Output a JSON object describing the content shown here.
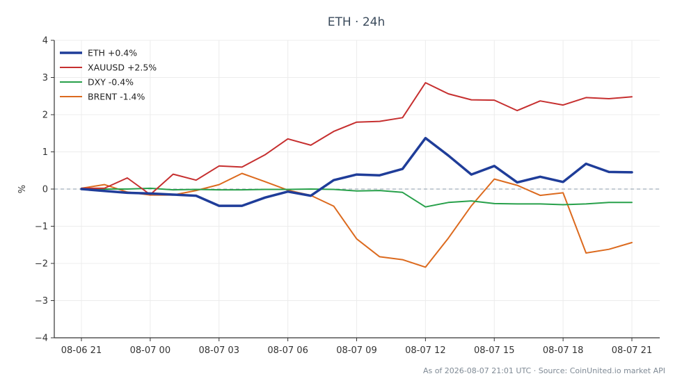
{
  "chart_data": {
    "type": "line",
    "title": "ETH · 24h",
    "xlabel": "",
    "ylabel": "%",
    "ylim": [
      -4,
      4
    ],
    "yticks": [
      4,
      3,
      2,
      1,
      0,
      -1,
      -2,
      -3,
      -4
    ],
    "ytick_labels": [
      "4",
      "3",
      "2",
      "1",
      "0",
      "−1",
      "−2",
      "−3",
      "−4"
    ],
    "xlim": [
      0,
      24
    ],
    "xticks": [
      0,
      3,
      6,
      9,
      12,
      15,
      18,
      21,
      24
    ],
    "xtick_labels": [
      "08-06 21",
      "08-07 00",
      "08-07 03",
      "08-07 06",
      "08-07 09",
      "08-07 12",
      "08-07 15",
      "08-07 18",
      "08-07 21"
    ],
    "x": [
      0,
      1,
      2,
      3,
      4,
      5,
      6,
      7,
      8,
      9,
      10,
      11,
      12,
      13,
      14,
      15,
      16,
      17,
      18,
      19,
      20,
      21,
      22,
      23,
      24
    ],
    "grid": true,
    "zero_line": true,
    "legend_position": "top-left",
    "series": [
      {
        "name": "ETH +0.4%",
        "color": "#1f3d99",
        "width": 3.5,
        "values": [
          0,
          -0.05,
          -0.1,
          -0.12,
          -0.15,
          -0.18,
          -0.45,
          -0.45,
          -0.23,
          -0.07,
          -0.18,
          0.24,
          0.39,
          0.37,
          0.54,
          1.37,
          0.9,
          0.39,
          0.62,
          0.18,
          0.33,
          0.19,
          0.68,
          0.46,
          0.45
        ]
      },
      {
        "name": "XAUUSD +2.5%",
        "color": "#c62f2f",
        "width": 2,
        "values": [
          0.02,
          0.02,
          0.3,
          -0.15,
          0.4,
          0.24,
          0.62,
          0.59,
          0.92,
          1.35,
          1.18,
          1.55,
          1.8,
          1.82,
          1.92,
          2.86,
          2.56,
          2.4,
          2.39,
          2.11,
          2.37,
          2.26,
          2.46,
          2.43,
          2.48
        ]
      },
      {
        "name": "DXY -0.4%",
        "color": "#27a04a",
        "width": 2,
        "values": [
          0,
          0,
          0,
          0.02,
          -0.02,
          -0.01,
          -0.02,
          -0.02,
          -0.01,
          -0.01,
          0,
          -0.01,
          -0.05,
          -0.04,
          -0.09,
          -0.48,
          -0.36,
          -0.32,
          -0.39,
          -0.4,
          -0.4,
          -0.42,
          -0.4,
          -0.36,
          -0.36
        ]
      },
      {
        "name": "BRENT -1.4%",
        "color": "#dc6a1e",
        "width": 2,
        "values": [
          0.02,
          0.12,
          -0.08,
          -0.16,
          -0.16,
          -0.04,
          0.12,
          0.42,
          0.2,
          -0.03,
          -0.17,
          -0.46,
          -1.34,
          -1.82,
          -1.9,
          -2.1,
          -1.32,
          -0.45,
          0.27,
          0.1,
          -0.17,
          -0.1,
          -1.72,
          -1.62,
          -1.44
        ]
      }
    ]
  },
  "footer_text": "As of 2026-08-07 21:01 UTC · Source: CoinUnited.io market API"
}
